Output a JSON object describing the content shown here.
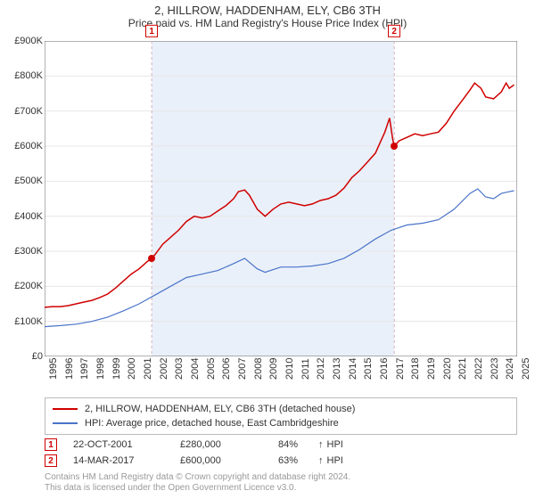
{
  "title": "2, HILLROW, HADDENHAM, ELY, CB6 3TH",
  "subtitle": "Price paid vs. HM Land Registry's House Price Index (HPI)",
  "chart": {
    "type": "line",
    "background_color": "#ffffff",
    "grid_color": "#e6e6e6",
    "axis_color": "#666666",
    "band_color": "#eaf0fa",
    "band_x_start": 2001.8,
    "band_x_end": 2017.2,
    "xlim": [
      1995,
      2025
    ],
    "xtick_step": 1,
    "xticks": [
      1995,
      1996,
      1997,
      1998,
      1999,
      2000,
      2001,
      2002,
      2003,
      2004,
      2005,
      2006,
      2007,
      2008,
      2009,
      2010,
      2011,
      2012,
      2013,
      2014,
      2015,
      2016,
      2017,
      2018,
      2019,
      2020,
      2021,
      2022,
      2023,
      2024,
      2025
    ],
    "ylim": [
      0,
      900000
    ],
    "ytick_step": 100000,
    "ytick_labels": [
      "£0",
      "£100K",
      "£200K",
      "£300K",
      "£400K",
      "£500K",
      "£600K",
      "£700K",
      "£800K",
      "£900K"
    ],
    "tick_label_fontsize": 11,
    "series": [
      {
        "name": "property",
        "label": "2, HILLROW, HADDENHAM, ELY, CB6 3TH (detached house)",
        "color": "#d00000",
        "line_width": 1.5,
        "data": [
          [
            1995.0,
            140000
          ],
          [
            1995.5,
            142000
          ],
          [
            1996.0,
            142000
          ],
          [
            1996.5,
            145000
          ],
          [
            1997.0,
            150000
          ],
          [
            1997.5,
            155000
          ],
          [
            1998.0,
            160000
          ],
          [
            1998.5,
            168000
          ],
          [
            1999.0,
            178000
          ],
          [
            1999.5,
            195000
          ],
          [
            2000.0,
            215000
          ],
          [
            2000.5,
            235000
          ],
          [
            2001.0,
            250000
          ],
          [
            2001.5,
            270000
          ],
          [
            2001.8,
            280000
          ],
          [
            2002.0,
            290000
          ],
          [
            2002.5,
            320000
          ],
          [
            2003.0,
            340000
          ],
          [
            2003.5,
            360000
          ],
          [
            2004.0,
            385000
          ],
          [
            2004.5,
            400000
          ],
          [
            2005.0,
            395000
          ],
          [
            2005.5,
            400000
          ],
          [
            2006.0,
            415000
          ],
          [
            2006.5,
            430000
          ],
          [
            2007.0,
            450000
          ],
          [
            2007.3,
            470000
          ],
          [
            2007.7,
            475000
          ],
          [
            2008.0,
            460000
          ],
          [
            2008.5,
            420000
          ],
          [
            2009.0,
            400000
          ],
          [
            2009.5,
            420000
          ],
          [
            2010.0,
            435000
          ],
          [
            2010.5,
            440000
          ],
          [
            2011.0,
            435000
          ],
          [
            2011.5,
            430000
          ],
          [
            2012.0,
            435000
          ],
          [
            2012.5,
            445000
          ],
          [
            2013.0,
            450000
          ],
          [
            2013.5,
            460000
          ],
          [
            2014.0,
            480000
          ],
          [
            2014.5,
            510000
          ],
          [
            2015.0,
            530000
          ],
          [
            2015.5,
            555000
          ],
          [
            2016.0,
            580000
          ],
          [
            2016.3,
            610000
          ],
          [
            2016.6,
            640000
          ],
          [
            2016.9,
            680000
          ],
          [
            2017.1,
            620000
          ],
          [
            2017.2,
            600000
          ],
          [
            2017.5,
            615000
          ],
          [
            2018.0,
            625000
          ],
          [
            2018.5,
            635000
          ],
          [
            2019.0,
            630000
          ],
          [
            2019.5,
            635000
          ],
          [
            2020.0,
            640000
          ],
          [
            2020.5,
            665000
          ],
          [
            2021.0,
            700000
          ],
          [
            2021.5,
            730000
          ],
          [
            2022.0,
            760000
          ],
          [
            2022.3,
            780000
          ],
          [
            2022.7,
            765000
          ],
          [
            2023.0,
            740000
          ],
          [
            2023.5,
            735000
          ],
          [
            2024.0,
            755000
          ],
          [
            2024.3,
            780000
          ],
          [
            2024.5,
            765000
          ],
          [
            2024.8,
            775000
          ]
        ]
      },
      {
        "name": "hpi",
        "label": "HPI: Average price, detached house, East Cambridgeshire",
        "color": "#4a74c9",
        "line_width": 1.2,
        "data": [
          [
            1995.0,
            85000
          ],
          [
            1996.0,
            88000
          ],
          [
            1997.0,
            92000
          ],
          [
            1998.0,
            100000
          ],
          [
            1999.0,
            112000
          ],
          [
            2000.0,
            130000
          ],
          [
            2001.0,
            150000
          ],
          [
            2002.0,
            175000
          ],
          [
            2003.0,
            200000
          ],
          [
            2004.0,
            225000
          ],
          [
            2005.0,
            235000
          ],
          [
            2006.0,
            245000
          ],
          [
            2007.0,
            265000
          ],
          [
            2007.7,
            280000
          ],
          [
            2008.5,
            250000
          ],
          [
            2009.0,
            240000
          ],
          [
            2010.0,
            255000
          ],
          [
            2011.0,
            255000
          ],
          [
            2012.0,
            258000
          ],
          [
            2013.0,
            265000
          ],
          [
            2014.0,
            280000
          ],
          [
            2015.0,
            305000
          ],
          [
            2016.0,
            335000
          ],
          [
            2017.0,
            360000
          ],
          [
            2018.0,
            375000
          ],
          [
            2019.0,
            380000
          ],
          [
            2020.0,
            390000
          ],
          [
            2021.0,
            420000
          ],
          [
            2022.0,
            465000
          ],
          [
            2022.5,
            478000
          ],
          [
            2023.0,
            455000
          ],
          [
            2023.5,
            450000
          ],
          [
            2024.0,
            465000
          ],
          [
            2024.5,
            470000
          ],
          [
            2024.8,
            473000
          ]
        ]
      }
    ],
    "markers": [
      {
        "id": "1",
        "x": 2001.8,
        "y": 280000,
        "dashed_color": "#d8b0b0"
      },
      {
        "id": "2",
        "x": 2017.2,
        "y": 600000,
        "dashed_color": "#d8b0b0"
      }
    ]
  },
  "legend": {
    "series1_label": "2, HILLROW, HADDENHAM, ELY, CB6 3TH (detached house)",
    "series2_label": "HPI: Average price, detached house, East Cambridgeshire"
  },
  "sales": [
    {
      "marker": "1",
      "date": "22-OCT-2001",
      "price": "£280,000",
      "pct": "84%",
      "suffix": "HPI"
    },
    {
      "marker": "2",
      "date": "14-MAR-2017",
      "price": "£600,000",
      "pct": "63%",
      "suffix": "HPI"
    }
  ],
  "footer": {
    "line1": "Contains HM Land Registry data © Crown copyright and database right 2024.",
    "line2": "This data is licensed under the Open Government Licence v3.0."
  }
}
